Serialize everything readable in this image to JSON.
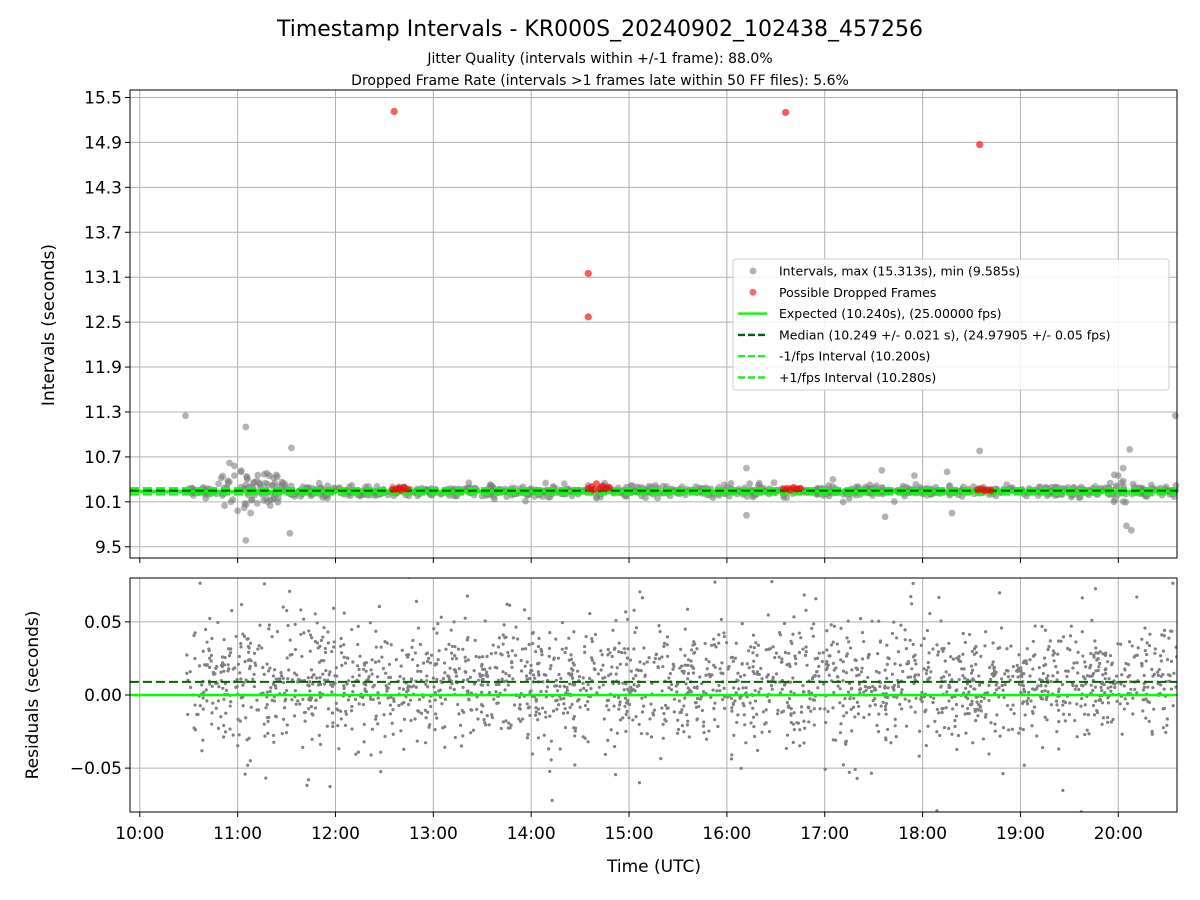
{
  "figure": {
    "title": "Timestamp Intervals - KR000S_20240902_102438_457256",
    "subtitle_1": "Jitter Quality (intervals within +/-1 frame): 88.0%",
    "subtitle_2": "Dropped Frame Rate (intervals >1 frames late within 50 FF files): 5.6%"
  },
  "colors": {
    "intervals": "#808080",
    "dropped": "#ff0000",
    "expected": "#00ff00",
    "median": "#006400",
    "fps_bounds": "#22ee22",
    "grid": "#b0b0b0"
  },
  "chart_data": [
    {
      "type": "scatter",
      "panel": "intervals",
      "ylabel": "Intervals (seconds)",
      "ylim": [
        9.35,
        15.6
      ],
      "yticks": [
        "9.5",
        "10.1",
        "10.7",
        "11.3",
        "11.9",
        "12.5",
        "13.1",
        "13.7",
        "14.3",
        "14.9",
        "15.5"
      ],
      "xlim": [
        "09:54",
        "20:36"
      ],
      "grid": true,
      "legend_position": "center-right",
      "legend": [
        {
          "label": "Intervals, max (15.313s), min (9.585s)",
          "marker": "dot",
          "color": "#808080"
        },
        {
          "label": "Possible Dropped Frames",
          "marker": "dot",
          "color": "#ff0000"
        },
        {
          "label": "Expected (10.240s), (25.00000 fps)",
          "marker": "solid",
          "color": "#00ff00"
        },
        {
          "label": "Median (10.249 +/- 0.021 s), (24.97905 +/- 0.05 fps)",
          "marker": "dashed",
          "color": "#006400"
        },
        {
          "label": "-1/fps Interval (10.200s)",
          "marker": "dashed",
          "color": "#22ee22"
        },
        {
          "label": "+1/fps Interval (10.280s)",
          "marker": "dashed",
          "color": "#22ee22"
        }
      ],
      "series": [
        {
          "name": "Intervals, max (15.313s), min (9.585s)",
          "points": [
            [
              "10:28",
              10.23
            ],
            [
              "10:30",
              10.24
            ],
            [
              "10:33",
              10.26
            ],
            [
              "10:36",
              10.22
            ],
            [
              "10:38",
              10.25
            ],
            [
              "10:40",
              10.21
            ],
            [
              "10:43",
              10.27
            ],
            [
              "10:46",
              10.24
            ],
            [
              "10:28",
              11.25
            ],
            [
              "10:50",
              10.42
            ],
            [
              "10:52",
              10.05
            ],
            [
              "10:54",
              10.38
            ],
            [
              "10:56",
              10.1
            ],
            [
              "10:58",
              10.45
            ],
            [
              "11:00",
              9.98
            ],
            [
              "11:02",
              10.5
            ],
            [
              "11:04",
              10.02
            ],
            [
              "11:06",
              10.4
            ],
            [
              "11:08",
              9.95
            ],
            [
              "11:10",
              10.35
            ],
            [
              "11:12",
              10.08
            ],
            [
              "11:14",
              10.3
            ],
            [
              "11:16",
              10.12
            ],
            [
              "11:18",
              10.48
            ],
            [
              "10:55",
              10.62
            ],
            [
              "10:58",
              10.58
            ],
            [
              "11:05",
              11.1
            ],
            [
              "11:05",
              9.585
            ],
            [
              "11:20",
              10.05
            ],
            [
              "11:22",
              10.42
            ],
            [
              "11:25",
              10.15
            ],
            [
              "11:28",
              10.35
            ],
            [
              "11:32",
              9.68
            ],
            [
              "11:33",
              10.82
            ],
            [
              "11:35",
              10.2
            ],
            [
              "11:40",
              10.3
            ],
            [
              "11:45",
              10.18
            ],
            [
              "11:50",
              10.35
            ],
            [
              "11:55",
              10.15
            ],
            [
              "12:00",
              10.28
            ],
            [
              "12:05",
              10.2
            ],
            [
              "12:10",
              10.32
            ],
            [
              "12:15",
              10.18
            ],
            [
              "12:20",
              10.26
            ],
            [
              "12:25",
              10.22
            ],
            [
              "12:35",
              10.3
            ],
            [
              "12:45",
              10.18
            ],
            [
              "12:55",
              10.27
            ],
            [
              "13:05",
              10.21
            ],
            [
              "13:15",
              10.25
            ],
            [
              "13:25",
              10.19
            ],
            [
              "13:35",
              10.33
            ],
            [
              "13:45",
              10.17
            ],
            [
              "13:55",
              10.3
            ],
            [
              "14:05",
              10.2
            ],
            [
              "14:15",
              10.28
            ],
            [
              "14:25",
              10.18
            ],
            [
              "14:35",
              10.32
            ],
            [
              "14:40",
              10.15
            ],
            [
              "14:45",
              10.35
            ],
            [
              "14:55",
              10.22
            ],
            [
              "15:05",
              10.3
            ],
            [
              "15:15",
              10.2
            ],
            [
              "15:25",
              10.26
            ],
            [
              "15:35",
              10.24
            ],
            [
              "15:45",
              10.28
            ],
            [
              "15:55",
              10.21
            ],
            [
              "16:05",
              10.25
            ],
            [
              "16:12",
              10.55
            ],
            [
              "16:12",
              9.92
            ],
            [
              "16:20",
              10.3
            ],
            [
              "16:30",
              10.22
            ],
            [
              "16:45",
              10.27
            ],
            [
              "16:55",
              10.2
            ],
            [
              "17:05",
              10.4
            ],
            [
              "17:15",
              10.15
            ],
            [
              "17:25",
              10.3
            ],
            [
              "17:35",
              10.52
            ],
            [
              "17:37",
              9.9
            ],
            [
              "17:45",
              10.25
            ],
            [
              "17:55",
              10.45
            ],
            [
              "18:05",
              10.2
            ],
            [
              "18:15",
              10.5
            ],
            [
              "18:18",
              9.95
            ],
            [
              "18:25",
              10.3
            ],
            [
              "18:35",
              10.78
            ],
            [
              "18:45",
              10.18
            ],
            [
              "18:55",
              10.26
            ],
            [
              "19:05",
              10.22
            ],
            [
              "19:15",
              10.28
            ],
            [
              "19:25",
              10.2
            ],
            [
              "19:35",
              10.25
            ],
            [
              "19:45",
              10.23
            ],
            [
              "19:55",
              10.35
            ],
            [
              "20:00",
              10.45
            ],
            [
              "20:03",
              10.55
            ],
            [
              "20:05",
              9.78
            ],
            [
              "20:07",
              10.8
            ],
            [
              "20:08",
              9.72
            ],
            [
              "20:10",
              10.3
            ],
            [
              "20:15",
              10.22
            ],
            [
              "20:25",
              10.26
            ],
            [
              "20:35",
              11.25
            ]
          ]
        },
        {
          "name": "Possible Dropped Frames",
          "points": [
            [
              "12:35",
              10.265
            ],
            [
              "12:37",
              10.27
            ],
            [
              "12:39",
              10.28
            ],
            [
              "12:40",
              10.26
            ],
            [
              "12:42",
              10.29
            ],
            [
              "12:44",
              10.27
            ],
            [
              "12:36",
              15.313
            ],
            [
              "14:35",
              10.28
            ],
            [
              "14:37",
              10.3
            ],
            [
              "14:38",
              10.26
            ],
            [
              "14:40",
              10.34
            ],
            [
              "14:42",
              10.27
            ],
            [
              "14:44",
              10.31
            ],
            [
              "14:46",
              10.28
            ],
            [
              "14:48",
              10.29
            ],
            [
              "14:35",
              13.15
            ],
            [
              "14:35",
              12.57
            ],
            [
              "16:35",
              10.27
            ],
            [
              "16:37",
              10.28
            ],
            [
              "16:39",
              10.26
            ],
            [
              "16:41",
              10.29
            ],
            [
              "16:43",
              10.27
            ],
            [
              "16:45",
              10.28
            ],
            [
              "16:36",
              15.3
            ],
            [
              "18:34",
              10.26
            ],
            [
              "18:36",
              10.27
            ],
            [
              "18:38",
              10.25
            ],
            [
              "18:40",
              10.26
            ],
            [
              "18:42",
              10.25
            ],
            [
              "18:35",
              14.87
            ]
          ]
        }
      ],
      "reference_lines": [
        {
          "name": "Expected",
          "y": 10.24
        },
        {
          "name": "Median",
          "y": 10.249
        },
        {
          "name": "-1/fps Interval",
          "y": 10.2
        },
        {
          "name": "+1/fps Interval",
          "y": 10.28
        }
      ]
    },
    {
      "type": "scatter",
      "panel": "residuals",
      "xlabel": "Time (UTC)",
      "ylabel": "Residuals (seconds)",
      "ylim": [
        -0.08,
        0.08
      ],
      "yticks": [
        "−0.05",
        "0.00",
        "0.05"
      ],
      "xlim": [
        "09:54",
        "20:36"
      ],
      "xticks": [
        "10:00",
        "11:00",
        "12:00",
        "13:00",
        "14:00",
        "15:00",
        "16:00",
        "17:00",
        "18:00",
        "19:00",
        "20:00"
      ],
      "grid": true,
      "series": [
        {
          "name": "Residuals",
          "x_range": [
            "10:28",
            "20:36"
          ],
          "center": 0.009,
          "spread": 0.021,
          "points_shown": "approximately 2200 points"
        }
      ],
      "reference_lines": [
        {
          "name": "Expected",
          "y": 0.0
        },
        {
          "name": "Median",
          "y": 0.009
        }
      ]
    }
  ]
}
